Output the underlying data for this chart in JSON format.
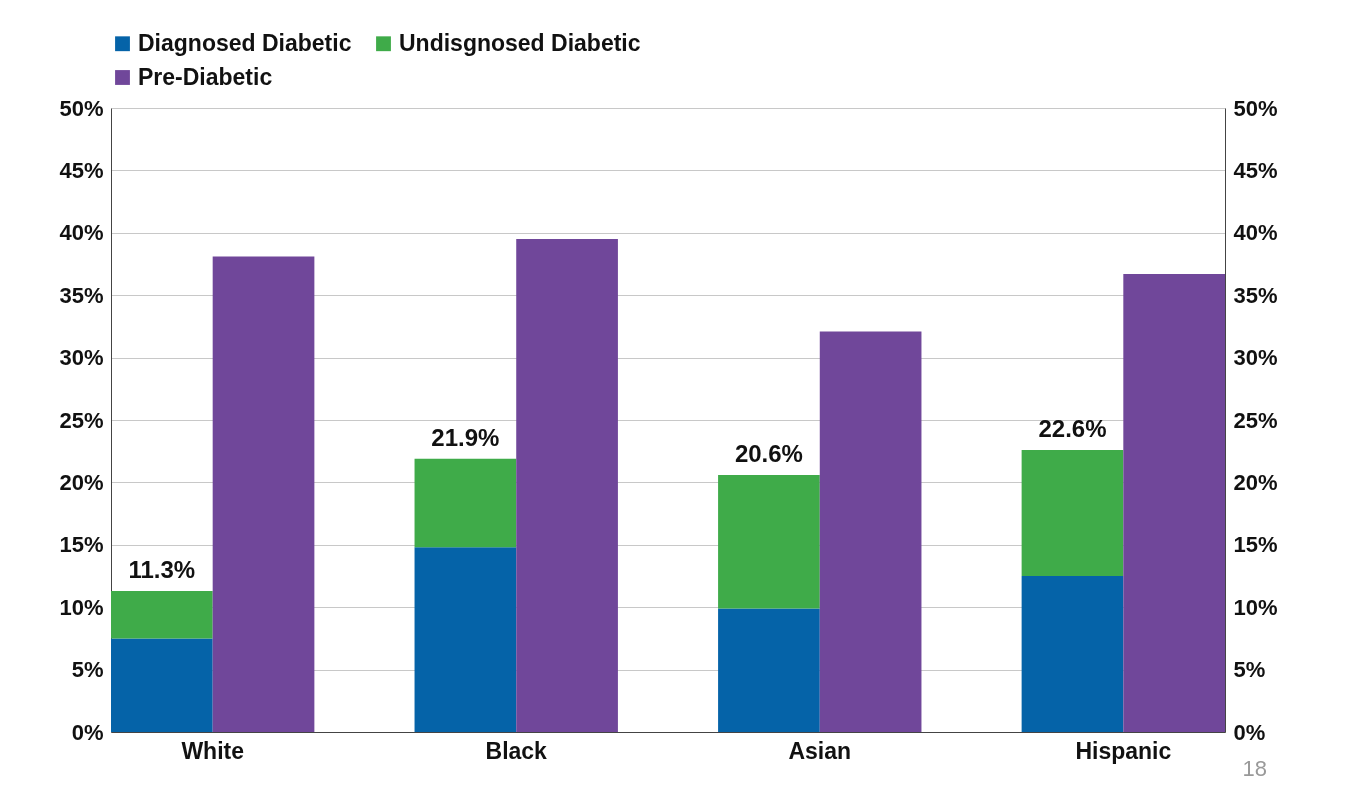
{
  "chart_data": {
    "type": "bar",
    "stacked": true,
    "categories": [
      "White",
      "Black",
      "Asian",
      "Hispanic"
    ],
    "series": [
      {
        "name": "Diagnosed Diabetic",
        "color": "#0563a8",
        "values": [
          7.5,
          14.8,
          9.9,
          12.5
        ]
      },
      {
        "name": "Undisgnosed Diabetic",
        "color": "#3fab49",
        "values": [
          3.8,
          7.1,
          10.7,
          10.1
        ]
      },
      {
        "name": "Pre-Diabetic",
        "color": "#70479a",
        "axis": "y2",
        "values": [
          38.1,
          39.5,
          32.1,
          36.7
        ]
      }
    ],
    "totals": [
      "11.3%",
      "21.9%",
      "20.6%",
      "22.6%"
    ],
    "ylim": [
      0,
      50
    ],
    "yticks": [
      {
        "value": 0,
        "label": "0%"
      },
      {
        "value": 5,
        "label": "5%"
      },
      {
        "value": 10,
        "label": "10%"
      },
      {
        "value": 15,
        "label": "15%"
      },
      {
        "value": 20,
        "label": "20%"
      },
      {
        "value": 25,
        "label": "25%"
      },
      {
        "value": 30,
        "label": "30%"
      },
      {
        "value": 35,
        "label": "35%"
      },
      {
        "value": 40,
        "label": "40%"
      },
      {
        "value": 45,
        "label": "45%"
      },
      {
        "value": 50,
        "label": "50%"
      }
    ],
    "y2lim": [
      0,
      50
    ],
    "y2ticks": [
      {
        "value": 0,
        "label": "0%"
      },
      {
        "value": 5,
        "label": "5%"
      },
      {
        "value": 10,
        "label": "10%"
      },
      {
        "value": 15,
        "label": "15%"
      },
      {
        "value": 20,
        "label": "20%"
      },
      {
        "value": 25,
        "label": "25%"
      },
      {
        "value": 30,
        "label": "30%"
      },
      {
        "value": 35,
        "label": "35%"
      },
      {
        "value": 40,
        "label": "40%"
      },
      {
        "value": 45,
        "label": "45%"
      },
      {
        "value": 50,
        "label": "50%"
      }
    ],
    "grid": "y",
    "legend": "top",
    "annotations": [
      "18"
    ]
  }
}
